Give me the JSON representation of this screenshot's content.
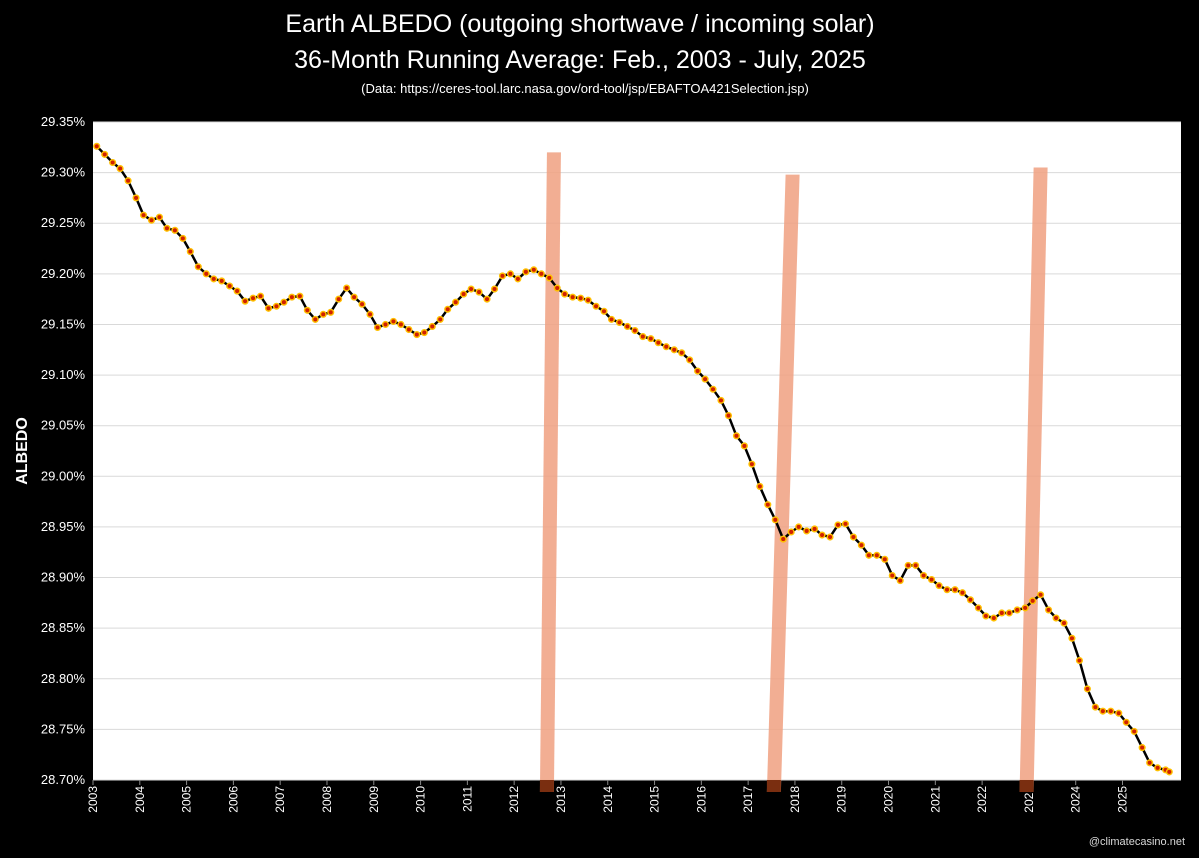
{
  "header": {
    "title": "Earth ALBEDO (outgoing shortwave / incoming solar)",
    "subtitle": "36-Month Running Average: Feb., 2003 - July, 2025",
    "source": "(Data: https://ceres-tool.larc.nasa.gov/ord-tool/jsp/EBAFTOA421Selection.jsp)"
  },
  "credit": "@climatecasino.net",
  "chart_data": {
    "type": "line",
    "title": "Earth ALBEDO (outgoing shortwave / incoming solar)",
    "subtitle": "36-Month Running Average: Feb., 2003 - July, 2025",
    "xlabel": "",
    "ylabel": "ALBEDO",
    "ylim": [
      28.7,
      29.35
    ],
    "xlim": [
      2003.0,
      2026.25
    ],
    "y_ticks": [
      "29.35%",
      "29.30%",
      "29.25%",
      "29.20%",
      "29.15%",
      "29.10%",
      "29.05%",
      "29.00%",
      "28.95%",
      "28.90%",
      "28.85%",
      "28.80%",
      "28.75%",
      "28.70%"
    ],
    "x_ticks": [
      "2003",
      "2004",
      "2005",
      "2006",
      "2007",
      "2008",
      "2009",
      "2010",
      "2011",
      "2012",
      "2013",
      "2014",
      "2015",
      "2016",
      "2017",
      "2018",
      "2019",
      "2020",
      "2021",
      "2022",
      "2023",
      "2024",
      "2025"
    ],
    "grid": true,
    "legend": "none",
    "colors": {
      "line": "#000000",
      "marker_fill": "#d02000",
      "marker_edge": "#ffc000",
      "shade": "#f0a080",
      "shade_base": "#7a2e10",
      "plot_bg": "#ffffff",
      "grid": "#d9d9d9"
    },
    "series": [
      {
        "points": [
          [
            2003.08,
            29.326
          ],
          [
            2003.25,
            29.318
          ],
          [
            2003.42,
            29.31
          ],
          [
            2003.58,
            29.304
          ],
          [
            2003.75,
            29.292
          ],
          [
            2003.92,
            29.275
          ],
          [
            2004.08,
            29.258
          ],
          [
            2004.25,
            29.253
          ],
          [
            2004.42,
            29.256
          ],
          [
            2004.58,
            29.245
          ],
          [
            2004.75,
            29.243
          ],
          [
            2004.92,
            29.235
          ],
          [
            2005.08,
            29.222
          ],
          [
            2005.25,
            29.207
          ],
          [
            2005.42,
            29.2
          ],
          [
            2005.58,
            29.195
          ],
          [
            2005.75,
            29.193
          ],
          [
            2005.92,
            29.188
          ],
          [
            2006.08,
            29.183
          ],
          [
            2006.25,
            29.173
          ],
          [
            2006.42,
            29.176
          ],
          [
            2006.58,
            29.178
          ],
          [
            2006.75,
            29.166
          ],
          [
            2006.92,
            29.168
          ],
          [
            2007.08,
            29.172
          ],
          [
            2007.25,
            29.177
          ],
          [
            2007.42,
            29.178
          ],
          [
            2007.58,
            29.164
          ],
          [
            2007.75,
            29.155
          ],
          [
            2007.92,
            29.16
          ],
          [
            2008.08,
            29.162
          ],
          [
            2008.25,
            29.175
          ],
          [
            2008.42,
            29.186
          ],
          [
            2008.58,
            29.177
          ],
          [
            2008.75,
            29.17
          ],
          [
            2008.92,
            29.16
          ],
          [
            2009.08,
            29.147
          ],
          [
            2009.25,
            29.15
          ],
          [
            2009.42,
            29.153
          ],
          [
            2009.58,
            29.15
          ],
          [
            2009.75,
            29.145
          ],
          [
            2009.92,
            29.14
          ],
          [
            2010.08,
            29.142
          ],
          [
            2010.25,
            29.148
          ],
          [
            2010.42,
            29.155
          ],
          [
            2010.58,
            29.165
          ],
          [
            2010.75,
            29.172
          ],
          [
            2010.92,
            29.18
          ],
          [
            2011.08,
            29.185
          ],
          [
            2011.25,
            29.182
          ],
          [
            2011.42,
            29.175
          ],
          [
            2011.58,
            29.185
          ],
          [
            2011.75,
            29.198
          ],
          [
            2011.92,
            29.2
          ],
          [
            2012.08,
            29.195
          ],
          [
            2012.25,
            29.202
          ],
          [
            2012.42,
            29.204
          ],
          [
            2012.58,
            29.2
          ],
          [
            2012.75,
            29.196
          ],
          [
            2012.92,
            29.186
          ],
          [
            2013.08,
            29.18
          ],
          [
            2013.25,
            29.177
          ],
          [
            2013.42,
            29.176
          ],
          [
            2013.58,
            29.174
          ],
          [
            2013.75,
            29.168
          ],
          [
            2013.92,
            29.163
          ],
          [
            2014.08,
            29.155
          ],
          [
            2014.25,
            29.152
          ],
          [
            2014.42,
            29.148
          ],
          [
            2014.58,
            29.144
          ],
          [
            2014.75,
            29.138
          ],
          [
            2014.92,
            29.136
          ],
          [
            2015.08,
            29.132
          ],
          [
            2015.25,
            29.128
          ],
          [
            2015.42,
            29.125
          ],
          [
            2015.58,
            29.122
          ],
          [
            2015.75,
            29.115
          ],
          [
            2015.92,
            29.104
          ],
          [
            2016.08,
            29.096
          ],
          [
            2016.25,
            29.086
          ],
          [
            2016.42,
            29.075
          ],
          [
            2016.58,
            29.06
          ],
          [
            2016.75,
            29.04
          ],
          [
            2016.92,
            29.03
          ],
          [
            2017.08,
            29.012
          ],
          [
            2017.25,
            28.99
          ],
          [
            2017.42,
            28.972
          ],
          [
            2017.58,
            28.957
          ],
          [
            2017.75,
            28.938
          ],
          [
            2017.92,
            28.945
          ],
          [
            2018.08,
            28.95
          ],
          [
            2018.25,
            28.946
          ],
          [
            2018.42,
            28.948
          ],
          [
            2018.58,
            28.942
          ],
          [
            2018.75,
            28.94
          ],
          [
            2018.92,
            28.952
          ],
          [
            2019.08,
            28.953
          ],
          [
            2019.25,
            28.94
          ],
          [
            2019.42,
            28.932
          ],
          [
            2019.58,
            28.922
          ],
          [
            2019.75,
            28.922
          ],
          [
            2019.92,
            28.918
          ],
          [
            2020.08,
            28.902
          ],
          [
            2020.25,
            28.897
          ],
          [
            2020.42,
            28.912
          ],
          [
            2020.58,
            28.912
          ],
          [
            2020.75,
            28.902
          ],
          [
            2020.92,
            28.898
          ],
          [
            2021.08,
            28.892
          ],
          [
            2021.25,
            28.888
          ],
          [
            2021.42,
            28.888
          ],
          [
            2021.58,
            28.885
          ],
          [
            2021.75,
            28.878
          ],
          [
            2021.92,
            28.87
          ],
          [
            2022.08,
            28.862
          ],
          [
            2022.25,
            28.86
          ],
          [
            2022.42,
            28.865
          ],
          [
            2022.58,
            28.865
          ],
          [
            2022.75,
            28.868
          ],
          [
            2022.92,
            28.87
          ],
          [
            2023.08,
            28.877
          ],
          [
            2023.25,
            28.883
          ],
          [
            2023.42,
            28.868
          ],
          [
            2023.58,
            28.86
          ],
          [
            2023.75,
            28.855
          ],
          [
            2023.92,
            28.84
          ],
          [
            2024.08,
            28.818
          ],
          [
            2024.25,
            28.79
          ],
          [
            2024.42,
            28.772
          ],
          [
            2024.58,
            28.768
          ],
          [
            2024.75,
            28.768
          ],
          [
            2024.92,
            28.766
          ],
          [
            2025.08,
            28.757
          ],
          [
            2025.25,
            28.748
          ],
          [
            2025.42,
            28.732
          ],
          [
            2025.58,
            28.717
          ],
          [
            2025.75,
            28.712
          ],
          [
            2025.92,
            28.71
          ],
          [
            2026.0,
            28.708
          ]
        ]
      }
    ],
    "shaded_bars": [
      {
        "top_x": 2012.85,
        "base_x": 2012.7,
        "top_y": 29.32
      },
      {
        "top_x": 2017.95,
        "base_x": 2017.55,
        "top_y": 29.298
      },
      {
        "top_x": 2023.25,
        "base_x": 2022.95,
        "top_y": 29.305
      }
    ]
  }
}
